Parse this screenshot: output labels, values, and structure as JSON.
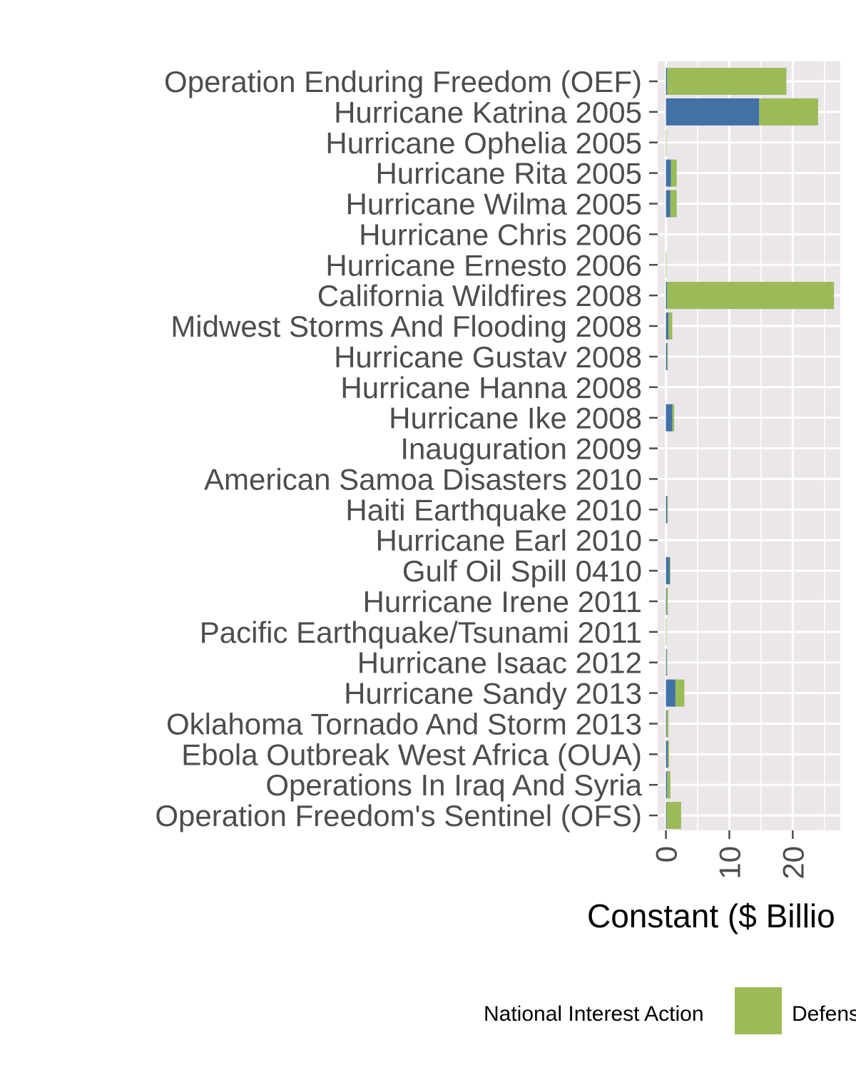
{
  "chart_data": {
    "type": "bar",
    "orientation": "horizontal",
    "stacked": true,
    "xlabel": "Constant ($ Billio",
    "ylabel": "",
    "xlim": [
      -1.3,
      27.5
    ],
    "x_ticks": [
      0,
      10,
      20
    ],
    "grid": true,
    "legend_placement": "bottom",
    "legend_title": "National Interest Action",
    "categories": [
      "Operation Enduring Freedom (OEF)",
      "Hurricane Katrina 2005",
      "Hurricane Ophelia 2005",
      "Hurricane Rita 2005",
      "Hurricane Wilma 2005",
      "Hurricane Chris 2006",
      "Hurricane Ernesto 2006",
      "California Wildfires 2008",
      "Midwest Storms And Flooding 2008",
      "Hurricane Gustav 2008",
      "Hurricane Hanna 2008",
      "Hurricane Ike 2008",
      "Inauguration 2009",
      "American Samoa Disasters 2010",
      "Haiti Earthquake 2010",
      "Hurricane Earl 2010",
      "Gulf Oil Spill 0410",
      "Hurricane Irene 2011",
      "Pacific Earthquake/Tsunami 2011",
      "Hurricane Isaac 2012",
      "Hurricane Sandy 2013",
      "Oklahoma Tornado And Storm 2013",
      "Ebola Outbreak West Africa (OUA)",
      "Operations In Iraq And Syria",
      "Operation Freedom's Sentinel (OFS)"
    ],
    "series": [
      {
        "color": "#4271a5",
        "values": [
          0.2,
          14.7,
          0,
          0.8,
          0.7,
          0,
          0,
          0.2,
          0.4,
          0.2,
          0,
          1.0,
          0,
          0,
          0.2,
          0,
          0.6,
          0.1,
          0,
          0.1,
          1.5,
          0.1,
          0.3,
          0.2,
          0.1
        ]
      },
      {
        "name": "Defens",
        "color": "#9bbb59",
        "values": [
          18.8,
          9.3,
          0.1,
          0.9,
          1.0,
          0,
          0.1,
          26.3,
          0.6,
          0.1,
          0,
          0.3,
          0,
          0,
          0.1,
          0,
          0.1,
          0.2,
          0.1,
          0.1,
          1.4,
          0.3,
          0.2,
          0.5,
          2.3
        ]
      }
    ]
  }
}
